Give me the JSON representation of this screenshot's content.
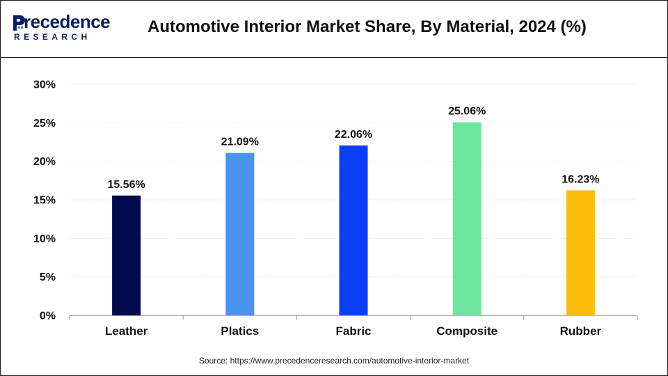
{
  "header": {
    "logo_top": "recedence",
    "logo_bottom": "RESEARCH",
    "title": "Automotive Interior Market Share, By Material, 2024 (%)"
  },
  "source": "Source: https://www.precedenceresearch.com/automotive-interior-market",
  "colors": {
    "logo": "#0a1f63",
    "grid": "#e4e4e4",
    "axis": "#999999"
  },
  "chart_data": {
    "type": "bar",
    "title": "Automotive Interior Market Share, By Material, 2024 (%)",
    "categories": [
      "Leather",
      "Platics",
      "Fabric",
      "Composite",
      "Rubber"
    ],
    "values": [
      15.56,
      21.09,
      22.06,
      25.06,
      16.23
    ],
    "value_labels": [
      "15.56%",
      "21.09%",
      "22.06%",
      "25.06%",
      "16.23%"
    ],
    "bar_colors": [
      "#030b4f",
      "#4a94f0",
      "#0b3ff5",
      "#6ee59f",
      "#fbbd0b"
    ],
    "y_ticks": [
      "0%",
      "5%",
      "10%",
      "15%",
      "20%",
      "25%",
      "30%"
    ],
    "ylim": [
      0,
      30
    ],
    "y_unit": "%",
    "xlabel": "",
    "ylabel": "",
    "grid": true,
    "legend": "none"
  }
}
